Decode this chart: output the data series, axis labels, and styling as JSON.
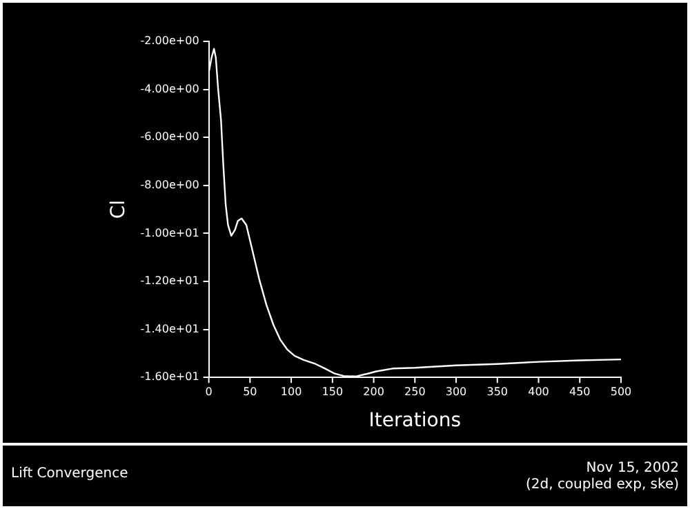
{
  "chart_data": {
    "type": "line",
    "title": "Lift Convergence",
    "xlabel": "Iterations",
    "ylabel": "Cl",
    "annotations": [
      "Nov 15, 2002",
      "(2d, coupled exp, ske)"
    ],
    "series": [
      {
        "color": "#ffffff",
        "x": [
          0,
          3.4,
          6.3,
          8.5,
          11.4,
          14.8,
          17.6,
          20.5,
          23.3,
          27.3,
          31.8,
          35.2,
          39.8,
          45.5,
          52.8,
          61.4,
          69.9,
          78.4,
          86.9,
          95.5,
          104,
          115,
          129.5,
          141,
          152,
          163.6,
          178,
          192,
          203,
          223,
          250,
          300,
          350,
          400,
          450,
          500
        ],
        "values": [
          -3.29,
          -2.67,
          -2.31,
          -2.67,
          -4.02,
          -5.27,
          -7.15,
          -8.81,
          -9.65,
          -10.1,
          -9.85,
          -9.48,
          -9.38,
          -9.65,
          -10.69,
          -11.94,
          -12.98,
          -13.81,
          -14.44,
          -14.85,
          -15.1,
          -15.27,
          -15.44,
          -15.63,
          -15.83,
          -15.94,
          -15.96,
          -15.85,
          -15.75,
          -15.63,
          -15.6,
          -15.5,
          -15.44,
          -15.35,
          -15.29,
          -15.25
        ]
      }
    ],
    "xlim": [
      0,
      500
    ],
    "xticks": [
      0,
      50,
      100,
      150,
      200,
      250,
      300,
      350,
      400,
      450,
      500
    ],
    "ylim": [
      -16,
      -2
    ],
    "yticks": [
      {
        "value": -16,
        "label": "-1.60e+01"
      },
      {
        "value": -14,
        "label": "-1.40e+01"
      },
      {
        "value": -12,
        "label": "-1.20e+01"
      },
      {
        "value": -10,
        "label": "-1.00e+01"
      },
      {
        "value": -8,
        "label": "-8.00e+00"
      },
      {
        "value": -6,
        "label": "-6.00e+00"
      },
      {
        "value": -4,
        "label": "-4.00e+00"
      },
      {
        "value": -2,
        "label": "-2.00e+00"
      }
    ]
  }
}
